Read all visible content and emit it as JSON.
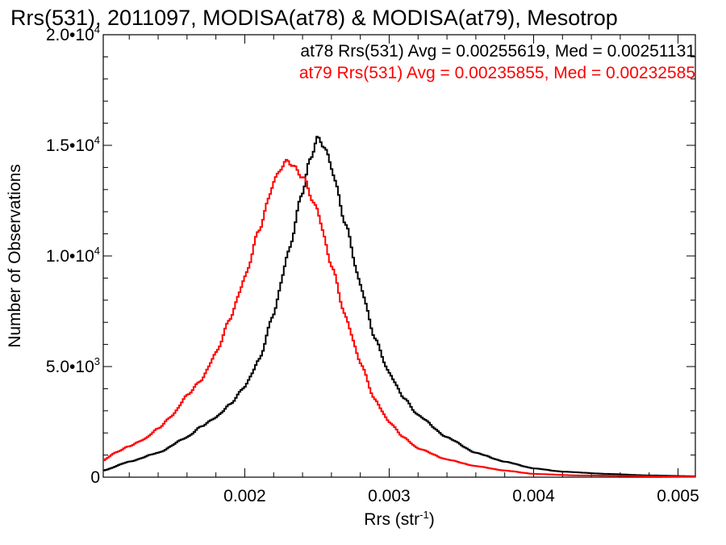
{
  "chart_data": {
    "type": "line",
    "style": "histogram-step",
    "title": "Rrs(531), 2011097, MODISA(at78) & MODISA(at79), Mesotrop",
    "xlabel": {
      "base": "Rrs (str",
      "sup": "-1",
      "close": ")"
    },
    "ylabel": "Number of Observations",
    "xlim": [
      0.00102,
      0.00512
    ],
    "ylim": [
      0,
      20000
    ],
    "x_ticks": [
      {
        "value": 0.002,
        "label": "0.002"
      },
      {
        "value": 0.003,
        "label": "0.003"
      },
      {
        "value": 0.004,
        "label": "0.004"
      },
      {
        "value": 0.005,
        "label": "0.005"
      }
    ],
    "y_ticks": [
      {
        "value": 0,
        "mant": "0",
        "exp": ""
      },
      {
        "value": 5000,
        "mant": "5.0•10",
        "exp": "3"
      },
      {
        "value": 10000,
        "mant": "1.0•10",
        "exp": "4"
      },
      {
        "value": 15000,
        "mant": "1.5•10",
        "exp": "4"
      },
      {
        "value": 20000,
        "mant": "2.0•10",
        "exp": "4"
      }
    ],
    "series": [
      {
        "name": "at78",
        "color": "#000000",
        "stats_label": "at78 Rrs(531) Avg = 0.00255619, Med = 0.00251131",
        "x": [
          0.00102,
          0.0012,
          0.0014,
          0.0016,
          0.0017,
          0.0018,
          0.0019,
          0.002,
          0.0021,
          0.0022,
          0.0023,
          0.0024,
          0.00245,
          0.0025,
          0.00255,
          0.0026,
          0.0027,
          0.0028,
          0.0029,
          0.003,
          0.0031,
          0.0032,
          0.0034,
          0.0036,
          0.0038,
          0.004,
          0.0042,
          0.0045,
          0.0048,
          0.00512
        ],
        "y": [
          300,
          700,
          1100,
          1800,
          2300,
          2700,
          3300,
          4100,
          5300,
          7400,
          10100,
          12900,
          14300,
          15300,
          15000,
          14000,
          11400,
          8700,
          6300,
          4700,
          3600,
          2800,
          1800,
          1100,
          700,
          400,
          250,
          150,
          80,
          40
        ]
      },
      {
        "name": "at79",
        "color": "#ff0000",
        "stats_label": "at79 Rrs(531) Avg = 0.00235855, Med = 0.00232585",
        "x": [
          0.00102,
          0.0011,
          0.0012,
          0.0013,
          0.0014,
          0.0015,
          0.0016,
          0.0017,
          0.0018,
          0.0019,
          0.002,
          0.0021,
          0.0022,
          0.00225,
          0.0023,
          0.0024,
          0.0025,
          0.0026,
          0.0027,
          0.0028,
          0.0029,
          0.003,
          0.0031,
          0.0032,
          0.0034,
          0.0036,
          0.0038,
          0.004,
          0.0043,
          0.00512
        ],
        "y": [
          750,
          1100,
          1400,
          1700,
          2200,
          2800,
          3700,
          4400,
          5600,
          7200,
          9000,
          11200,
          13300,
          14000,
          14300,
          13600,
          12100,
          9600,
          7200,
          5200,
          3500,
          2500,
          1800,
          1300,
          800,
          500,
          300,
          150,
          80,
          20
        ]
      }
    ]
  }
}
